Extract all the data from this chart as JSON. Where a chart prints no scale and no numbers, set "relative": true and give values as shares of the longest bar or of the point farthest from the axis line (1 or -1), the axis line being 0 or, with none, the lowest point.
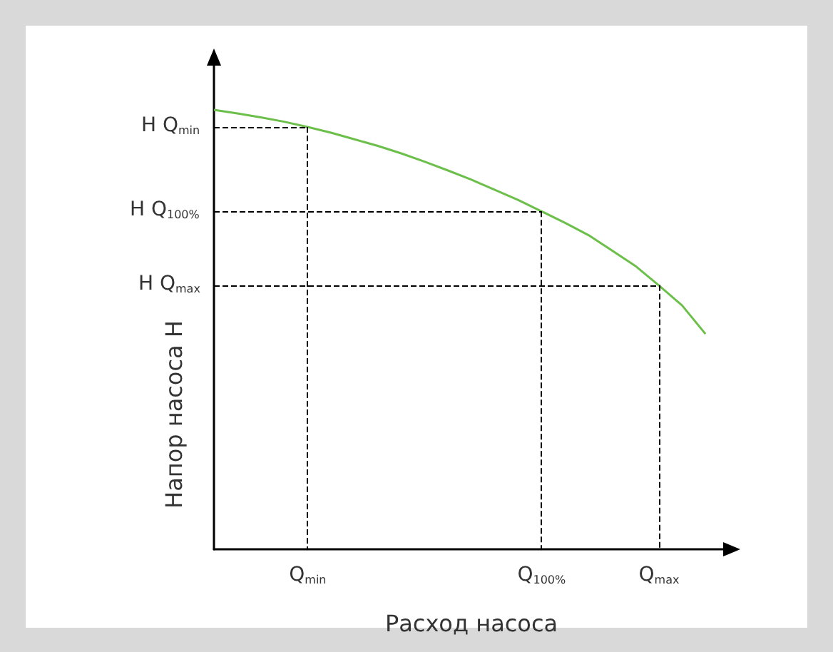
{
  "chart_data": {
    "type": "line",
    "relative": true,
    "xlabel": "Расход насоса",
    "ylabel": "Напор насоса H",
    "color": "#6cbf4a",
    "categories": [
      null,
      null,
      null,
      null,
      "Q$_{min}$",
      null,
      null,
      null,
      null,
      null,
      null,
      null,
      null,
      null,
      "Q$_{100%}$",
      null,
      null,
      null,
      null,
      "Q$_{max}$",
      null,
      null,
      null
    ],
    "values": [
      1,
      0.992,
      0.983,
      0.973,
      0.961,
      0.948,
      0.933,
      0.918,
      0.901,
      0.882,
      0.862,
      0.841,
      0.818,
      0.795,
      0.769,
      0.743,
      0.715,
      0.68,
      0.645,
      0.601,
      0.555,
      0.49,
      null
    ],
    "ref_lines": [
      {
        "axis": "y",
        "value": 0.961,
        "label": "H Q$_{min}$",
        "line_style": "dashed",
        "color": "#000000"
      },
      {
        "axis": "y",
        "value": 0.769,
        "label": "H Q$_{100%}$",
        "line_style": "dashed",
        "color": "#000000"
      },
      {
        "axis": "y",
        "value": 0.601,
        "label": "H Q$_{max}$",
        "line_style": "dashed",
        "color": "#000000"
      },
      {
        "axis": "x",
        "value": "Q$_{min}$",
        "line_style": "dashed",
        "color": "#000000"
      },
      {
        "axis": "x",
        "value": "Q$_{100%}$",
        "line_style": "dashed",
        "color": "#000000"
      },
      {
        "axis": "x",
        "value": "Q$_{max}$",
        "line_style": "dashed",
        "color": "#000000"
      }
    ],
    "grid": false,
    "marker": "none",
    "line_style": "solid"
  }
}
